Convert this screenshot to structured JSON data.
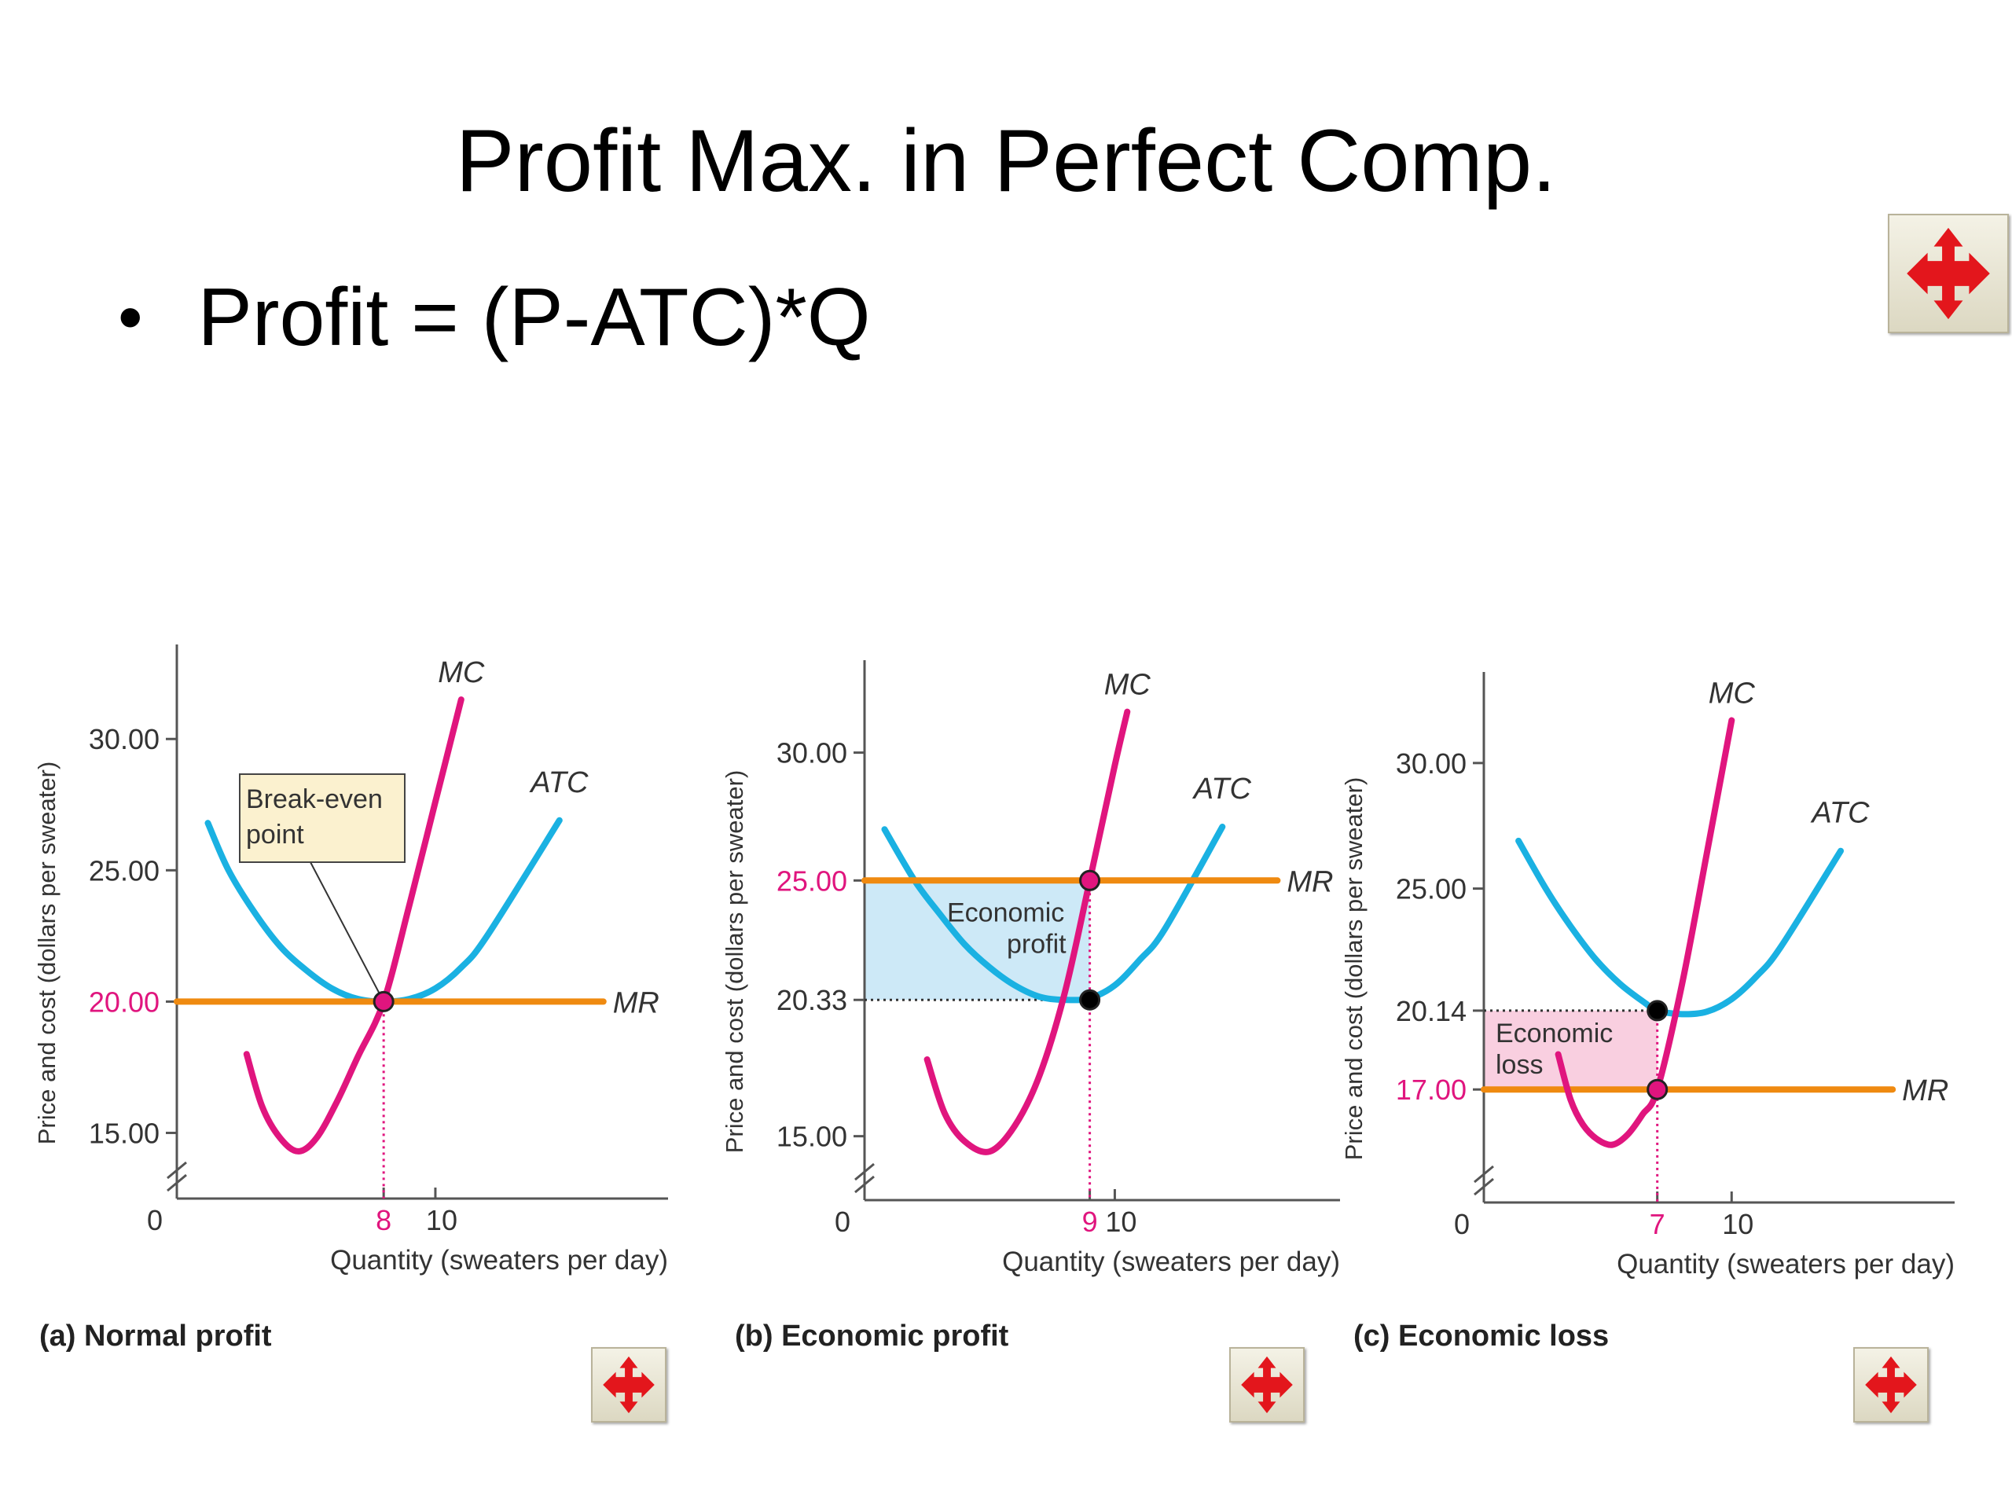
{
  "slide": {
    "title": "Profit Max. in Perfect Comp.",
    "bullet": "Profit = (P-ATC)*Q"
  },
  "icons": {
    "move": "move-arrows-icon"
  },
  "colors": {
    "mc": "#e0157e",
    "atc": "#1ab1e2",
    "mr": "#ef8a10",
    "highlight_text": "#e0157e",
    "profit_fill": "#cde9f7",
    "loss_fill": "#f9cfe0",
    "callout_fill": "#fbf1cf"
  },
  "chart_data": [
    {
      "type": "line",
      "caption": "(a) Normal profit",
      "xlabel": "Quantity (sweaters per day)",
      "ylabel": "Price and cost (dollars per sweater)",
      "xlim": [
        0,
        19
      ],
      "ylim": [
        12.5,
        33
      ],
      "y_ticks": [
        "30.00",
        "25.00",
        "20.00",
        "15.00"
      ],
      "y_tick_values": [
        30,
        25,
        20,
        15
      ],
      "highlight_y_tick": "20.00",
      "x_ticks": [
        "0",
        "8",
        "10"
      ],
      "x_tick_values": [
        0,
        8,
        10
      ],
      "highlight_x_tick": "8",
      "series": [
        {
          "name": "MC",
          "x": [
            2.7,
            3.3,
            4.0,
            4.7,
            5.4,
            6.2,
            7.0,
            8.0,
            9.0,
            10.0,
            11.0
          ],
          "y": [
            18.0,
            16.0,
            14.8,
            14.3,
            14.8,
            16.2,
            17.9,
            20.0,
            23.7,
            27.6,
            31.5
          ]
        },
        {
          "name": "ATC",
          "x": [
            1.2,
            2.0,
            3.0,
            4.0,
            5.0,
            6.0,
            7.0,
            8.0,
            9.0,
            10.0,
            11.0,
            12.0,
            14.8
          ],
          "y": [
            26.8,
            25.0,
            23.4,
            22.1,
            21.2,
            20.5,
            20.1,
            20.0,
            20.1,
            20.5,
            21.3,
            22.5,
            26.9
          ]
        },
        {
          "name": "MR",
          "x": [
            0,
            16.5
          ],
          "y": [
            20.0,
            20.0
          ]
        }
      ],
      "points": [
        {
          "x": 8,
          "y": 20.0,
          "color": "#e0157e"
        }
      ],
      "annotations": [
        {
          "text": [
            "Break-even",
            "point"
          ],
          "points_to": [
            8,
            20.0
          ]
        }
      ]
    },
    {
      "type": "line",
      "caption": "(b) Economic profit",
      "xlabel": "Quantity (sweaters per day)",
      "ylabel": "Price and cost (dollars per sweater)",
      "xlim": [
        0,
        19
      ],
      "ylim": [
        12.5,
        33
      ],
      "y_ticks": [
        "30.00",
        "25.00",
        "20.33",
        "15.00"
      ],
      "y_tick_values": [
        30,
        25,
        20.33,
        15
      ],
      "highlight_y_tick": "25.00",
      "x_ticks": [
        "0",
        "9",
        "10"
      ],
      "x_tick_values": [
        0,
        9,
        10
      ],
      "highlight_x_tick": "9",
      "series": [
        {
          "name": "MC",
          "x": [
            2.5,
            3.2,
            4.0,
            5.0,
            6.0,
            7.0,
            8.0,
            9.0,
            10.0,
            10.5
          ],
          "y": [
            18.0,
            15.9,
            14.8,
            14.4,
            15.4,
            17.4,
            20.6,
            25.0,
            29.5,
            31.6
          ]
        },
        {
          "name": "ATC",
          "x": [
            0.8,
            2.0,
            3.0,
            4.0,
            5.0,
            6.0,
            7.0,
            8.0,
            9.0,
            10.0,
            11.0,
            12.0,
            14.3
          ],
          "y": [
            27.0,
            25.0,
            23.7,
            22.5,
            21.6,
            20.9,
            20.45,
            20.33,
            20.4,
            20.9,
            21.9,
            23.1,
            27.1
          ]
        },
        {
          "name": "MR",
          "x": [
            0,
            16.5
          ],
          "y": [
            25.0,
            25.0
          ]
        }
      ],
      "points": [
        {
          "x": 9,
          "y": 25.0,
          "color": "#e0157e"
        },
        {
          "x": 9,
          "y": 20.33,
          "color": "#000000"
        }
      ],
      "region": {
        "label": [
          "Economic",
          "profit"
        ],
        "x": [
          0,
          9
        ],
        "y": [
          20.33,
          25.0
        ]
      }
    },
    {
      "type": "line",
      "caption": "(c) Economic loss",
      "xlabel": "Quantity (sweaters per day)",
      "ylabel": "Price and cost (dollars per sweater)",
      "xlim": [
        0,
        19
      ],
      "ylim": [
        12.5,
        33
      ],
      "y_ticks": [
        "30.00",
        "25.00",
        "20.14",
        "17.00"
      ],
      "y_tick_values": [
        30,
        25,
        20.14,
        17
      ],
      "highlight_y_tick": "17.00",
      "x_ticks": [
        "0",
        "7",
        "10"
      ],
      "x_tick_values": [
        0,
        7,
        10
      ],
      "highlight_x_tick": "7",
      "series": [
        {
          "name": "MC",
          "x": [
            3.0,
            3.5,
            4.0,
            4.6,
            5.2,
            5.8,
            6.4,
            7.0,
            8.0,
            9.0,
            10.0
          ],
          "y": [
            18.4,
            16.6,
            15.6,
            15.0,
            14.8,
            15.2,
            16.0,
            17.0,
            21.2,
            26.4,
            31.7
          ]
        },
        {
          "name": "ATC",
          "x": [
            1.4,
            2.5,
            3.5,
            4.5,
            5.5,
            6.5,
            7.0,
            8.0,
            9.0,
            10.0,
            11.0,
            12.0,
            14.4
          ],
          "y": [
            26.9,
            25.0,
            23.5,
            22.2,
            21.2,
            20.45,
            20.14,
            20.0,
            20.1,
            20.6,
            21.5,
            22.7,
            26.5
          ]
        },
        {
          "name": "MR",
          "x": [
            0,
            16.5
          ],
          "y": [
            17.0,
            17.0
          ]
        }
      ],
      "points": [
        {
          "x": 7,
          "y": 20.14,
          "color": "#000000"
        },
        {
          "x": 7,
          "y": 17.0,
          "color": "#e0157e"
        }
      ],
      "region": {
        "label": [
          "Economic",
          "loss"
        ],
        "x": [
          0,
          7
        ],
        "y": [
          17.0,
          20.14
        ]
      }
    }
  ]
}
